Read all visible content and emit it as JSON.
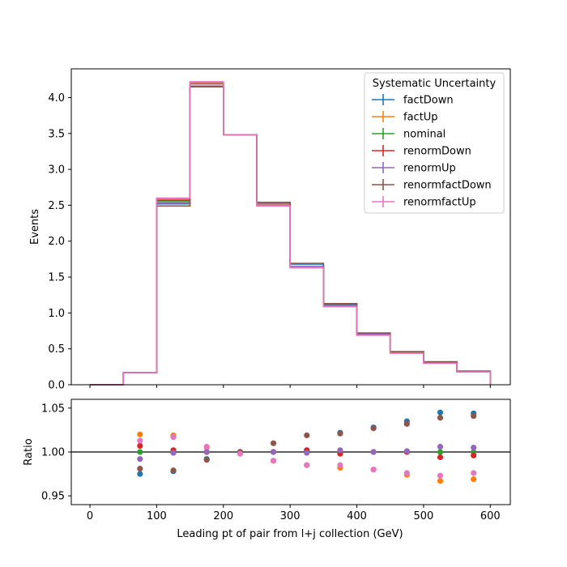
{
  "chart_data": {
    "type": "histogram",
    "bin_edges": [
      0,
      50,
      100,
      150,
      200,
      250,
      300,
      350,
      400,
      450,
      500,
      550,
      600
    ],
    "x_ticks": [
      0,
      100,
      200,
      300,
      400,
      500,
      600
    ],
    "x_tick_labels": [
      "0",
      "100",
      "200",
      "300",
      "400",
      "500",
      "600"
    ],
    "xlabel": "Leading pt of pair from l+j collection (GeV)",
    "xlim": [
      -28,
      630
    ],
    "top_panel": {
      "ylabel": "Events",
      "ylim": [
        0,
        4.4
      ],
      "y_ticks": [
        0,
        0.5,
        1.0,
        1.5,
        2.0,
        2.5,
        3.0,
        3.5,
        4.0
      ],
      "y_tick_labels": [
        "0.0",
        "0.5",
        "1.0",
        "1.5",
        "2.0",
        "2.5",
        "3.0",
        "3.5",
        "4.0"
      ]
    },
    "bottom_panel": {
      "ylabel": "Ratio",
      "ylim": [
        0.94,
        1.06
      ],
      "y_ticks": [
        0.95,
        1.0,
        1.05
      ],
      "y_tick_labels": [
        "0.95",
        "1.00",
        "1.05"
      ],
      "reference_line": 1.0
    },
    "legend": {
      "title": "Systematic Uncertainty",
      "position": "top-right"
    },
    "series": [
      {
        "name": "factDown",
        "color": "#1f77b4",
        "values": [
          0,
          0.17,
          2.52,
          4.15,
          3.48,
          2.52,
          1.68,
          1.12,
          0.72,
          0.46,
          0.32,
          0.19
        ],
        "ratio": [
          null,
          0.975,
          0.978,
          0.992,
          1.0,
          1.0,
          1.002,
          1.022,
          1.028,
          1.035,
          1.045,
          1.044
        ]
      },
      {
        "name": "factUp",
        "color": "#ff7f0e",
        "values": [
          0,
          0.17,
          2.59,
          4.21,
          3.48,
          2.5,
          1.63,
          1.09,
          0.69,
          0.44,
          0.3,
          0.18
        ],
        "ratio": [
          null,
          1.02,
          1.019,
          1.005,
          1.0,
          0.99,
          0.985,
          0.982,
          0.98,
          0.974,
          0.967,
          0.969
        ]
      },
      {
        "name": "nominal",
        "color": "#2ca02c",
        "values": [
          0,
          0.17,
          2.55,
          4.19,
          3.48,
          2.52,
          1.65,
          1.1,
          0.7,
          0.45,
          0.31,
          0.18
        ],
        "ratio": [
          null,
          1.0,
          1.0,
          1.0,
          1.0,
          1.0,
          1.0,
          1.0,
          1.0,
          1.0,
          1.0,
          1.0
        ]
      },
      {
        "name": "renormDown",
        "color": "#d62728",
        "values": [
          0,
          0.17,
          2.57,
          4.19,
          3.48,
          2.52,
          1.65,
          1.1,
          0.7,
          0.45,
          0.31,
          0.18
        ],
        "ratio": [
          null,
          1.007,
          1.002,
          1.0,
          1.0,
          1.0,
          1.002,
          0.998,
          1.0,
          1.0,
          0.994,
          0.996
        ]
      },
      {
        "name": "renormUp",
        "color": "#9467bd",
        "values": [
          0,
          0.17,
          2.53,
          4.19,
          3.48,
          2.52,
          1.65,
          1.1,
          0.7,
          0.45,
          0.31,
          0.18
        ],
        "ratio": [
          null,
          0.992,
          0.999,
          1.0,
          1.0,
          1.0,
          0.999,
          1.002,
          1.0,
          1.001,
          1.006,
          1.005
        ]
      },
      {
        "name": "renormfactDown",
        "color": "#8c564b",
        "values": [
          0,
          0.17,
          2.49,
          4.16,
          3.48,
          2.54,
          1.69,
          1.13,
          0.72,
          0.46,
          0.32,
          0.19
        ],
        "ratio": [
          null,
          0.981,
          0.979,
          0.991,
          1.0,
          1.01,
          1.019,
          1.021,
          1.027,
          1.032,
          1.039,
          1.041
        ]
      },
      {
        "name": "renormfactUp",
        "color": "#e377c2",
        "values": [
          0,
          0.17,
          2.6,
          4.22,
          3.48,
          2.49,
          1.63,
          1.09,
          0.69,
          0.44,
          0.3,
          0.18
        ],
        "ratio": [
          null,
          1.013,
          1.017,
          1.006,
          0.998,
          0.99,
          0.985,
          0.985,
          0.98,
          0.976,
          0.973,
          0.976
        ]
      }
    ]
  }
}
